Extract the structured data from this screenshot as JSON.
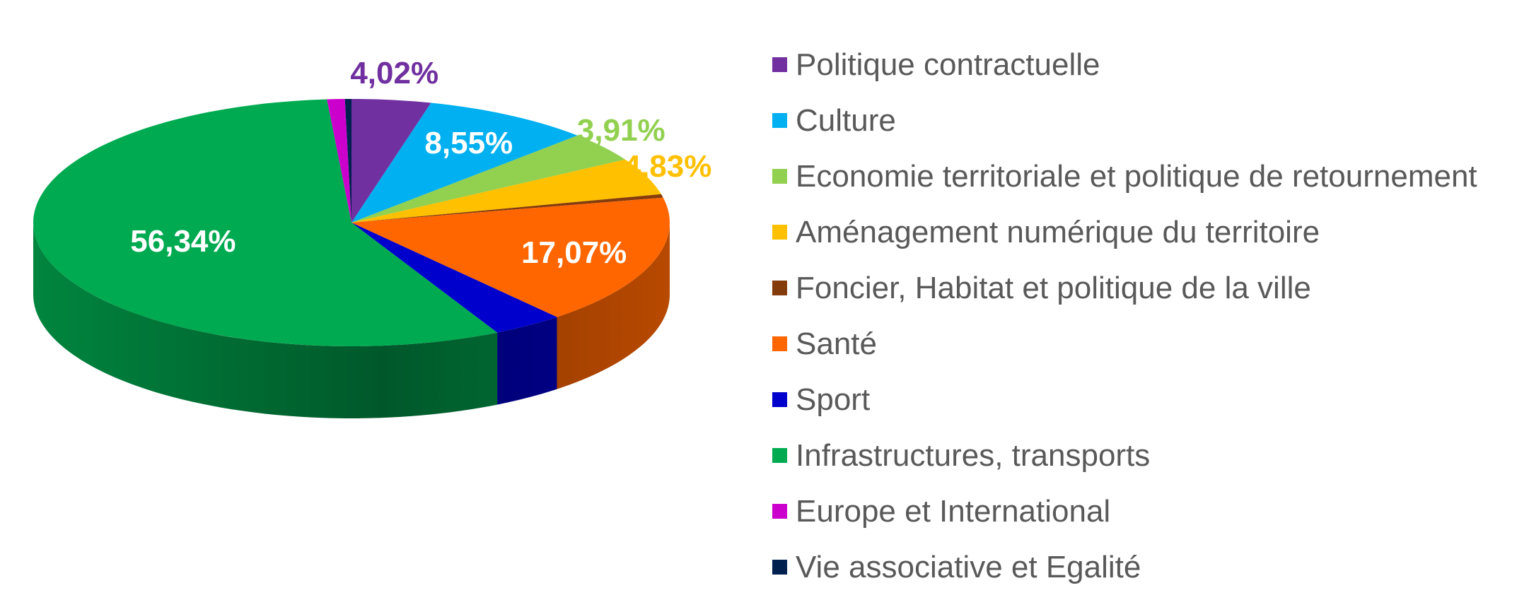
{
  "chart_data": {
    "type": "pie",
    "style": "3d-tilted",
    "legend_position": "right",
    "slices": [
      {
        "name": "Politique contractuelle",
        "value": 4.02,
        "color": "#7030A0",
        "label": "4,02%",
        "label_color": "#7030A0",
        "label_outside": true
      },
      {
        "name": "Culture",
        "value": 8.55,
        "color": "#00B0F0",
        "label": "8,55%",
        "label_color": "#FFFFFF",
        "label_outside": false
      },
      {
        "name": "Economie territoriale et politique de retournement",
        "value": 3.91,
        "color": "#92D050",
        "label": "3,91%",
        "label_color": "#92D050",
        "label_outside": true
      },
      {
        "name": "Aménagement numérique du territoire",
        "value": 4.83,
        "color": "#FFC000",
        "label": "4,83%",
        "label_color": "#FFC000",
        "label_outside": true
      },
      {
        "name": "Foncier, Habitat et politique de la ville",
        "value": 0.45,
        "color": "#843C0C",
        "label": "",
        "label_color": "",
        "label_outside": false
      },
      {
        "name": "Santé",
        "value": 17.07,
        "color": "#FF6600",
        "label": "17,07%",
        "label_color": "#FFFFFF",
        "label_outside": false
      },
      {
        "name": "Sport",
        "value": 3.6,
        "color": "#0000CC",
        "label": "",
        "label_color": "",
        "label_outside": false
      },
      {
        "name": "Infrastructures, transports",
        "value": 56.34,
        "color": "#00AA50",
        "label": "56,34%",
        "label_color": "#FFFFFF",
        "label_outside": false
      },
      {
        "name": "Europe et International",
        "value": 0.9,
        "color": "#CC00CC",
        "label": "",
        "label_color": "",
        "label_outside": false
      },
      {
        "name": "Vie associative et Egalité",
        "value": 0.33,
        "color": "#002050",
        "label": "",
        "label_color": "",
        "label_outside": false
      }
    ]
  }
}
